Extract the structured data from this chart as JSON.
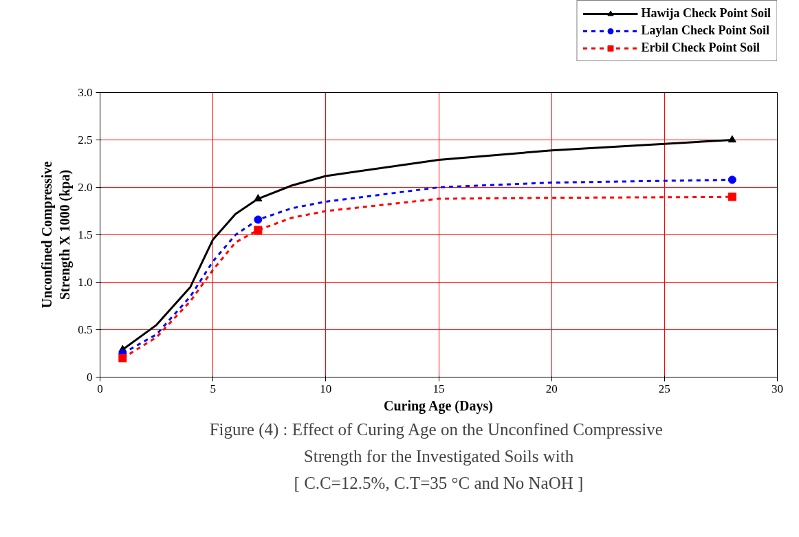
{
  "chart_data": {
    "type": "line",
    "xlabel": "Curing Age (Days)",
    "ylabel": "Unconfined Compressive\nStrength X 1000 (kpa)",
    "xlim": [
      0,
      30
    ],
    "xticks": [
      0,
      5,
      10,
      15,
      20,
      25,
      30
    ],
    "ylim": [
      0,
      3
    ],
    "yticks": [
      0,
      0.5,
      {
        "value": 1,
        "label": "1.0"
      },
      1.5,
      {
        "value": 2,
        "label": "2.0"
      },
      2.5,
      {
        "value": 3,
        "label": "3.0"
      }
    ],
    "grid": true,
    "legend": "top right",
    "series": [
      {
        "name": "Hawija Check Point Soil",
        "color": "#000000",
        "line_style": "solid",
        "marker": "none",
        "x": [
          1,
          2.5,
          4,
          5,
          6,
          7,
          8.5,
          10,
          15,
          20,
          28
        ],
        "values": [
          0.29,
          0.55,
          0.95,
          1.45,
          1.72,
          1.88,
          2.02,
          2.12,
          2.29,
          2.39,
          2.5
        ]
      },
      {
        "type": "scatter",
        "color": "#000000",
        "marker": "triangle",
        "x": [
          1,
          7,
          28
        ],
        "values": [
          0.29,
          1.88,
          2.5
        ]
      },
      {
        "name": "Laylan Check Point Soil",
        "color": "#0000ff",
        "line_style": "dashed",
        "marker": "none",
        "x": [
          1,
          2.5,
          4,
          5,
          6,
          7,
          8.5,
          10,
          15,
          20,
          28
        ],
        "values": [
          0.25,
          0.45,
          0.85,
          1.22,
          1.5,
          1.66,
          1.78,
          1.85,
          2.0,
          2.05,
          2.08
        ]
      },
      {
        "type": "scatter",
        "color": "#0000ff",
        "marker": "circle",
        "x": [
          1,
          7,
          28
        ],
        "values": [
          0.25,
          1.66,
          2.08
        ]
      },
      {
        "name": "Erbil Check Point Soil",
        "color": "#ff0000",
        "line_style": "dashed",
        "marker": "none",
        "x": [
          1,
          2.5,
          4,
          5,
          6,
          7,
          8.5,
          10,
          15,
          20,
          28
        ],
        "values": [
          0.2,
          0.42,
          0.8,
          1.13,
          1.42,
          1.55,
          1.68,
          1.75,
          1.88,
          1.89,
          1.9
        ]
      },
      {
        "type": "scatter",
        "color": "#ff0000",
        "marker": "square",
        "x": [
          1,
          7,
          28
        ],
        "values": [
          0.2,
          1.55,
          1.9
        ]
      }
    ],
    "annotations": [
      "Figure (4) : Effect of  Curing Age on the Unconfined Compressive",
      "Strength for the Investigated Soils with",
      "[ C.C=12.5%, C.T=35 °C and No NaOH ]"
    ]
  }
}
